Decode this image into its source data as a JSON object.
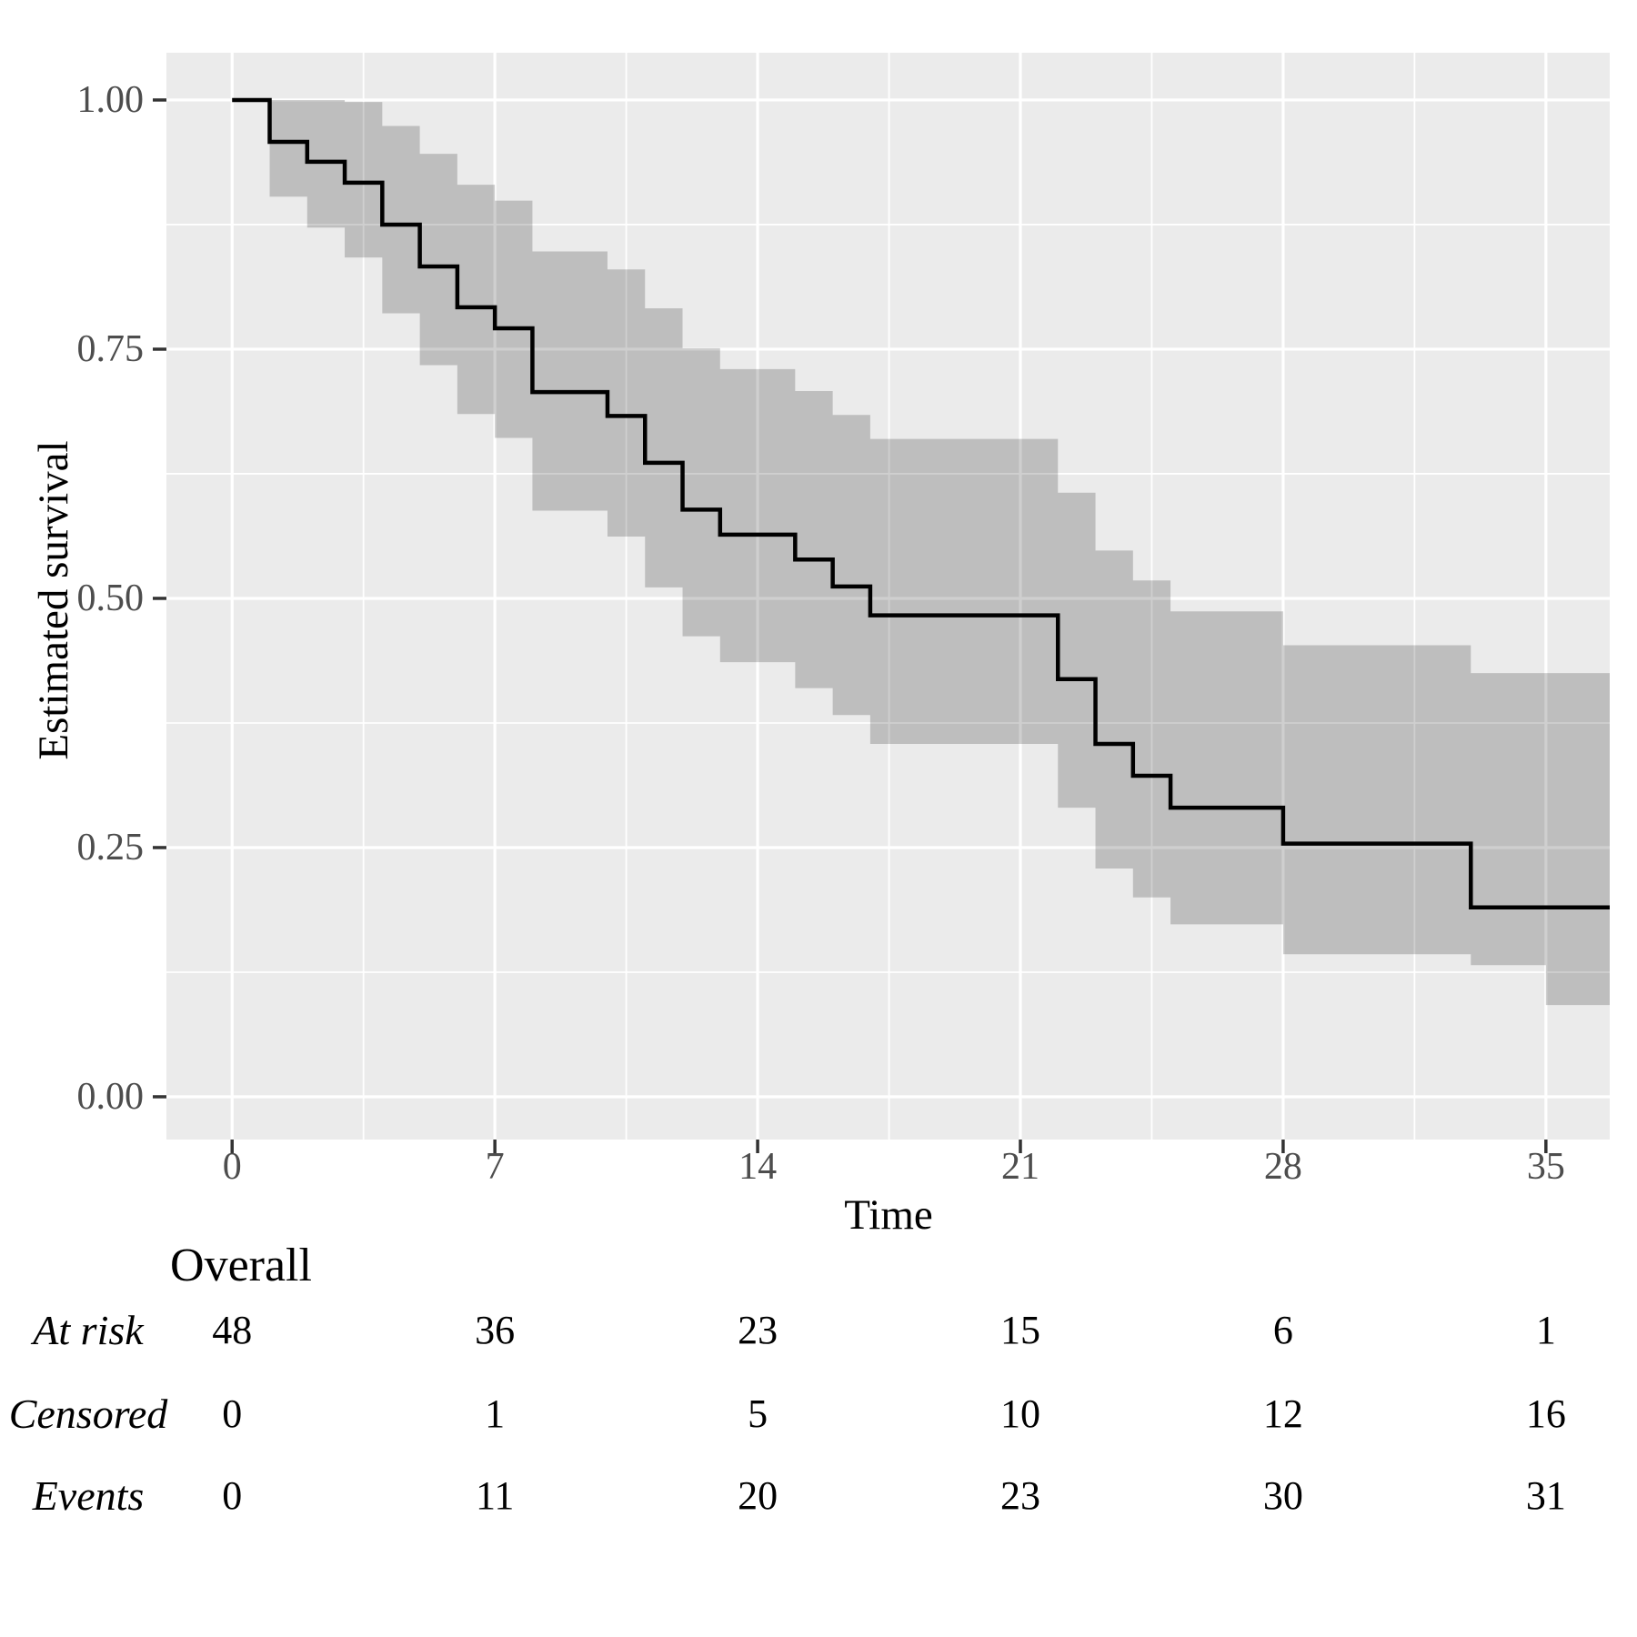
{
  "chart_data": {
    "type": "line",
    "subtype": "kaplan-meier-step",
    "title": "",
    "xlabel": "Time",
    "ylabel": "Estimated survival",
    "legend": "none",
    "grid": "on",
    "panel_bg": "#EBEBEB",
    "gridline_color": "#FFFFFF",
    "curve_color": "#000000",
    "band_fill": "rgba(0,0,0,0.19)",
    "tick_label_color": "#4d4d4d",
    "tick_mark_color": "#333333",
    "xlim": [
      -1.75,
      36.7
    ],
    "ylim": [
      -0.0429,
      1.0474
    ],
    "x_ticks": [
      0,
      7,
      14,
      21,
      28,
      35
    ],
    "x_tick_labels": [
      "0",
      "7",
      "14",
      "21",
      "28",
      "35"
    ],
    "x_minor_ticks": [
      3.5,
      10.5,
      17.5,
      24.5,
      31.5
    ],
    "y_ticks": [
      1.0,
      0.75,
      0.5,
      0.25,
      0.0
    ],
    "y_tick_labels": [
      "1.00",
      "0.75",
      "0.50",
      "0.25",
      "0.00"
    ],
    "y_minor_ticks": [
      0.875,
      0.625,
      0.375,
      0.125
    ],
    "km": {
      "comment": "step values: survival estimate with 95% CI (log), steps at event times",
      "times": [
        0,
        1,
        2,
        3,
        4,
        5,
        6,
        7,
        8,
        10,
        11,
        12,
        13,
        15,
        16,
        17,
        22,
        23,
        24,
        25,
        28,
        33,
        35
      ],
      "surv": [
        1.0,
        0.958,
        0.938,
        0.917,
        0.875,
        0.833,
        0.792,
        0.771,
        0.707,
        0.683,
        0.636,
        0.589,
        0.564,
        0.539,
        0.512,
        0.483,
        0.419,
        0.354,
        0.322,
        0.29,
        0.254,
        0.19,
        0.19
      ],
      "upper": [
        1.0,
        1.0,
        1.0,
        0.998,
        0.974,
        0.946,
        0.915,
        0.899,
        0.848,
        0.83,
        0.791,
        0.751,
        0.73,
        0.708,
        0.684,
        0.66,
        0.606,
        0.548,
        0.518,
        0.487,
        0.453,
        0.425,
        0.425
      ],
      "lower": [
        1.0,
        0.903,
        0.872,
        0.842,
        0.786,
        0.734,
        0.685,
        0.661,
        0.588,
        0.562,
        0.511,
        0.462,
        0.436,
        0.41,
        0.383,
        0.354,
        0.29,
        0.229,
        0.2,
        0.173,
        0.143,
        0.132,
        0.092
      ],
      "end_time": 36.7
    }
  },
  "risk_table": {
    "group_label": "Overall",
    "times": [
      0,
      7,
      14,
      21,
      28,
      35
    ],
    "rows": [
      {
        "label": "At risk",
        "values": [
          "48",
          "36",
          "23",
          "15",
          "6",
          "1"
        ]
      },
      {
        "label": "Censored",
        "values": [
          "0",
          "1",
          "5",
          "10",
          "12",
          "16"
        ]
      },
      {
        "label": "Events",
        "values": [
          "0",
          "11",
          "20",
          "23",
          "30",
          "31"
        ]
      }
    ]
  }
}
